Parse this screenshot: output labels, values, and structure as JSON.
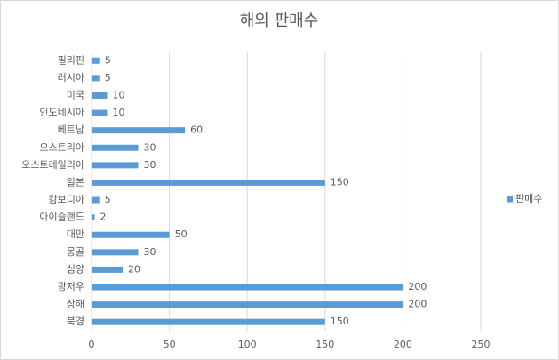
{
  "chart_data": {
    "type": "bar",
    "orientation": "horizontal",
    "title": "해외 판매수",
    "categories": [
      "필리핀",
      "러시아",
      "미국",
      "인도네시아",
      "베트남",
      "오스트리아",
      "오스트레일리아",
      "일본",
      "캄보디아",
      "아이슬랜드",
      "대만",
      "몽골",
      "심양",
      "광저우",
      "상해",
      "북경"
    ],
    "series": [
      {
        "name": "판매수",
        "color": "#5b9bd5",
        "values": [
          5,
          5,
          10,
          10,
          60,
          30,
          30,
          150,
          5,
          2,
          50,
          30,
          20,
          200,
          200,
          150
        ]
      }
    ],
    "xlim": [
      0,
      250
    ],
    "xticks": [
      0,
      50,
      100,
      150,
      200,
      250
    ],
    "grid": true,
    "legend": "right"
  }
}
